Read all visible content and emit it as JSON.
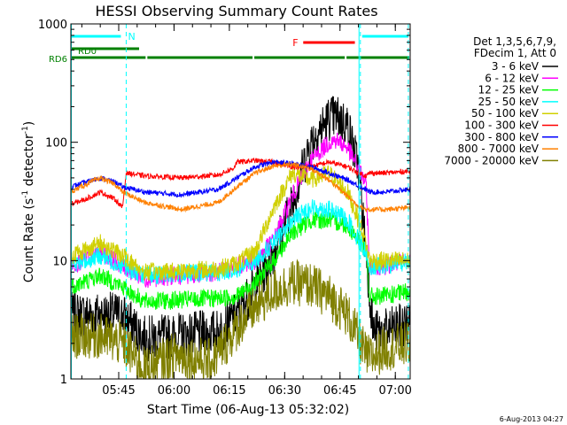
{
  "chart_data": {
    "type": "line",
    "title": "HESSI Observing Summary Count Rates",
    "xlabel": "Start Time (06-Aug-13 05:32:02)",
    "ylabel_main": "Count Rate (s",
    "ylabel_sup1": "-1",
    "ylabel_mid": " detector",
    "ylabel_sup2": "-1",
    "ylabel_end": ")",
    "yscale": "log",
    "ylim": [
      1,
      1000
    ],
    "xlim_minutes": [
      0,
      92
    ],
    "x_ticks": [
      {
        "label": "05:45",
        "minutes": 12.97
      },
      {
        "label": "06:00",
        "minutes": 27.97
      },
      {
        "label": "06:15",
        "minutes": 42.97
      },
      {
        "label": "06:30",
        "minutes": 57.97
      },
      {
        "label": "06:45",
        "minutes": 72.97
      },
      {
        "label": "07:00",
        "minutes": 87.97
      }
    ],
    "y_ticks": [
      {
        "label": "1",
        "value": 1
      },
      {
        "label": "10",
        "value": 10
      },
      {
        "label": "100",
        "value": 100
      },
      {
        "label": "1000",
        "value": 1000
      }
    ],
    "legend_position": "right",
    "legend_header": [
      "Det 1,3,5,6,7,9,",
      "FDecim 1, Att 0"
    ],
    "series": [
      {
        "name": "3 - 6 keV",
        "color": "#000000",
        "x": [
          0,
          14,
          20,
          40,
          45,
          50,
          55,
          60,
          65,
          70,
          72,
          75,
          78,
          82,
          85,
          92
        ],
        "y": [
          3.5,
          3.5,
          2.2,
          2.5,
          3.5,
          6,
          12,
          30,
          100,
          160,
          165,
          140,
          60,
          2.5,
          2.5,
          3
        ]
      },
      {
        "name": "6 - 12 keV",
        "color": "#ff00ff",
        "x": [
          0,
          8,
          14,
          20,
          40,
          45,
          50,
          55,
          60,
          65,
          70,
          72,
          75,
          78,
          80,
          81,
          85,
          92
        ],
        "y": [
          9,
          12,
          9,
          7,
          8,
          9,
          10,
          15,
          35,
          70,
          100,
          105,
          90,
          60,
          45,
          9,
          9,
          10
        ]
      },
      {
        "name": "12 - 25 keV",
        "color": "#00ff00",
        "x": [
          0,
          8,
          14,
          20,
          40,
          45,
          50,
          55,
          60,
          65,
          70,
          75,
          78,
          80,
          81,
          85,
          92
        ],
        "y": [
          6,
          7.5,
          6,
          4.5,
          4.8,
          5,
          6.5,
          10,
          17,
          22,
          22,
          20,
          15,
          12,
          5,
          5,
          5.5
        ]
      },
      {
        "name": "25 - 50 keV",
        "color": "#00ffff",
        "x": [
          0,
          8,
          14,
          20,
          40,
          45,
          50,
          55,
          60,
          65,
          70,
          75,
          78,
          80,
          81,
          85,
          92
        ],
        "y": [
          9,
          11,
          9,
          7.5,
          8,
          8.5,
          10,
          14,
          22,
          28,
          27,
          22,
          15,
          12,
          9,
          9,
          10
        ]
      },
      {
        "name": "50 - 100 keV",
        "color": "#d0d000",
        "x": [
          0,
          8,
          14,
          20,
          40,
          45,
          50,
          55,
          60,
          65,
          70,
          75,
          78,
          80,
          81,
          85,
          92
        ],
        "y": [
          11,
          14,
          11,
          8,
          8.5,
          9.5,
          12,
          28,
          55,
          48,
          55,
          38,
          22,
          14,
          10,
          10,
          10
        ]
      },
      {
        "name": "100 - 300 keV",
        "color": "#ff0000",
        "x": [
          0,
          4,
          8,
          12,
          14,
          15,
          20,
          30,
          40,
          44,
          45,
          50,
          55,
          60,
          65,
          70,
          75,
          78,
          80,
          81,
          85,
          92
        ],
        "y": [
          30,
          33,
          38,
          33,
          28,
          55,
          52,
          50,
          53,
          60,
          68,
          70,
          68,
          62,
          62,
          68,
          62,
          55,
          52,
          55,
          55,
          57
        ]
      },
      {
        "name": "300 - 800 keV",
        "color": "#0000ff",
        "x": [
          0,
          4,
          8,
          12,
          14,
          20,
          30,
          40,
          45,
          50,
          55,
          60,
          65,
          70,
          75,
          78,
          80,
          81,
          85,
          92
        ],
        "y": [
          42,
          46,
          50,
          46,
          42,
          38,
          36,
          40,
          50,
          62,
          68,
          66,
          62,
          55,
          48,
          43,
          40,
          38,
          38,
          40
        ]
      },
      {
        "name": "800 - 7000 keV",
        "color": "#ff8000",
        "x": [
          0,
          4,
          8,
          12,
          14,
          20,
          30,
          40,
          45,
          50,
          55,
          60,
          65,
          70,
          75,
          78,
          80,
          81,
          85,
          92
        ],
        "y": [
          38,
          44,
          50,
          44,
          38,
          31,
          27,
          31,
          42,
          55,
          63,
          65,
          60,
          48,
          35,
          29,
          27,
          27,
          27,
          28
        ]
      },
      {
        "name": "7000 - 20000 keV",
        "color": "#808000",
        "x": [
          0,
          8,
          14,
          20,
          28,
          38,
          44,
          46,
          50,
          55,
          60,
          65,
          70,
          75,
          78,
          80,
          81,
          85,
          92
        ],
        "y": [
          2.3,
          2.3,
          2,
          1.2,
          1.6,
          1.4,
          2.4,
          3,
          4,
          5.5,
          6.5,
          6.2,
          5,
          3.5,
          2.2,
          1.6,
          1.5,
          1.8,
          2
        ]
      }
    ],
    "annotations": {
      "saa_label": "N",
      "flare_label": "F",
      "decim_label": "RD0",
      "night_label": "RD6",
      "saa_intervals": [
        [
          0,
          15
        ]
      ],
      "night_intervals": [
        [
          78.5,
          92
        ]
      ],
      "flare_interval": [
        63,
        77
      ],
      "rd0_interval": [
        0,
        18.5
      ],
      "rd6_intervals": [
        [
          0,
          20.5
        ],
        [
          20.5,
          49.5
        ],
        [
          49.5,
          74.5
        ],
        [
          74.5,
          92
        ]
      ],
      "cyan_dashed_times": [
        15,
        78.5,
        91.5
      ],
      "cyan_solid_times": [
        0,
        78
      ]
    },
    "colors": {
      "saa": "#00ffff",
      "flare": "#ff0000",
      "decim": "#008000",
      "night": "#008000",
      "axes": "#000000"
    }
  },
  "timestamp": "6-Aug-2013 04:27"
}
